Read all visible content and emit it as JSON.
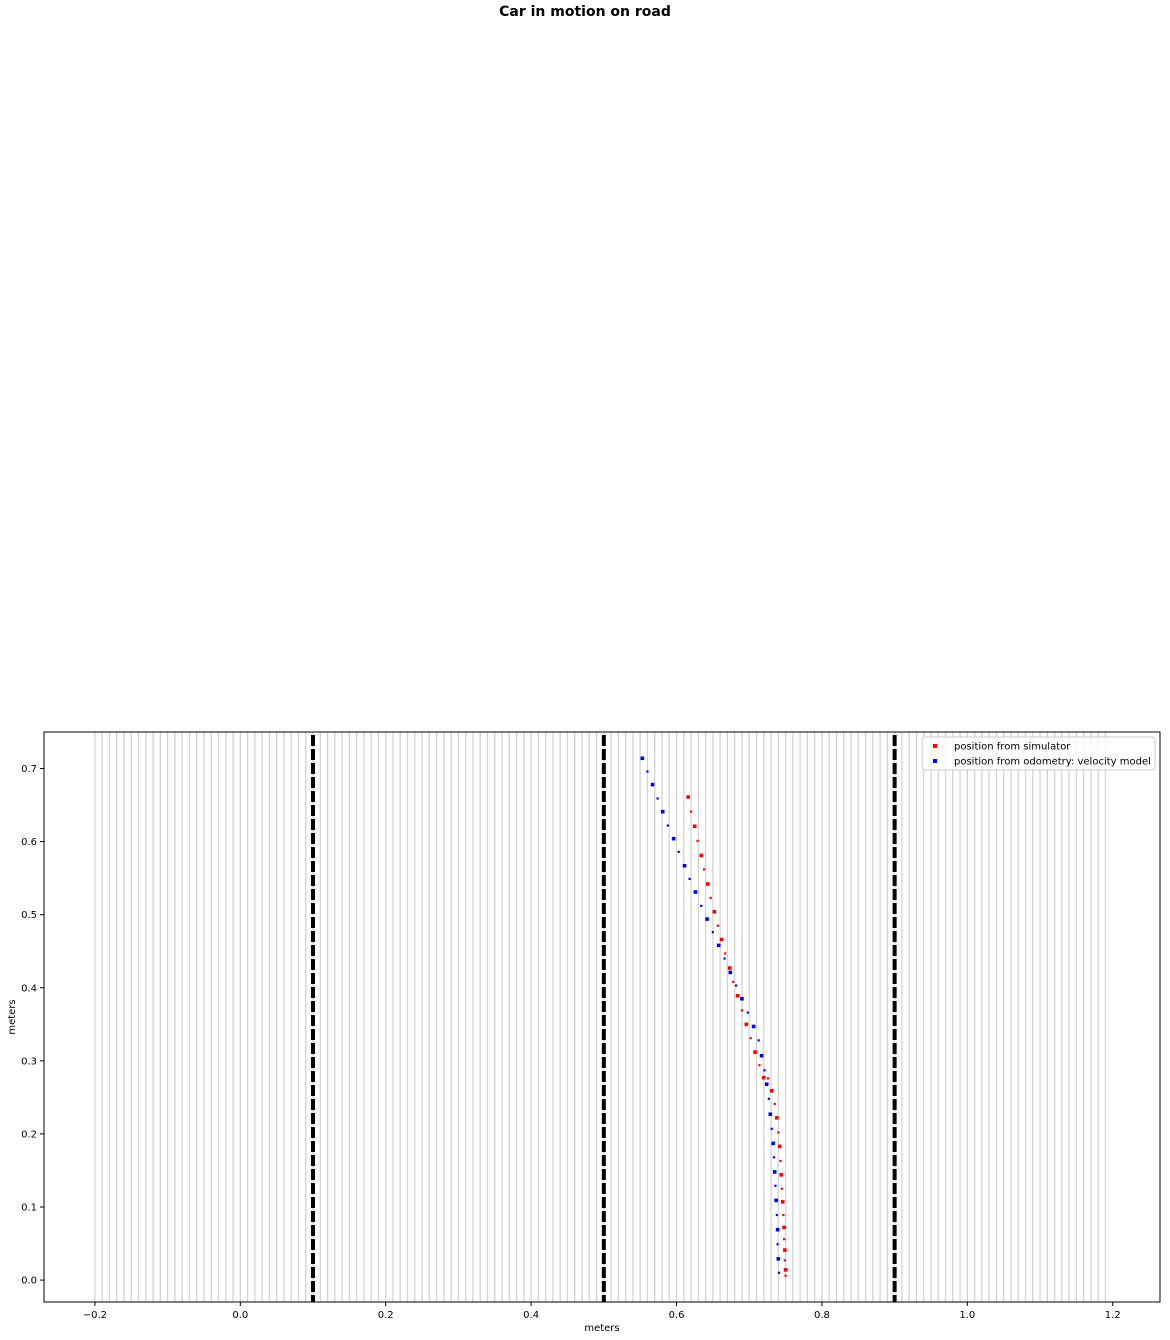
{
  "chart_data": {
    "type": "scatter",
    "title": "Car in motion on road",
    "xlabel": "meters",
    "ylabel": "meters",
    "xlim": [
      -0.27,
      1.265
    ],
    "ylim": [
      -0.03,
      0.75
    ],
    "xticks": [
      -0.2,
      0.0,
      0.2,
      0.4,
      0.6,
      0.8,
      1.0,
      1.2
    ],
    "xtick_labels": [
      "−0.2",
      "0.0",
      "0.2",
      "0.4",
      "0.6",
      "0.8",
      "1.0",
      "1.2"
    ],
    "yticks": [
      0.0,
      0.1,
      0.2,
      0.3,
      0.4,
      0.5,
      0.6,
      0.7
    ],
    "ytick_labels": [
      "0.0",
      "0.1",
      "0.2",
      "0.3",
      "0.4",
      "0.5",
      "0.6",
      "0.7"
    ],
    "grid": false,
    "legend_position": "top-right",
    "road": {
      "line_color": "#d3d3d3",
      "line_start": -0.2,
      "line_end": 1.19,
      "line_step": 0.01,
      "lane_markings": [
        0.1,
        0.5,
        0.9
      ],
      "lane_color": "#000000"
    },
    "series": [
      {
        "name": "position from simulator",
        "color": "#ff0000",
        "points": [
          [
            0.616,
            0.661
          ],
          [
            0.62,
            0.641
          ],
          [
            0.625,
            0.621
          ],
          [
            0.629,
            0.601
          ],
          [
            0.634,
            0.581
          ],
          [
            0.638,
            0.562
          ],
          [
            0.643,
            0.542
          ],
          [
            0.647,
            0.523
          ],
          [
            0.652,
            0.504
          ],
          [
            0.657,
            0.485
          ],
          [
            0.662,
            0.466
          ],
          [
            0.667,
            0.447
          ],
          [
            0.673,
            0.427
          ],
          [
            0.678,
            0.408
          ],
          [
            0.684,
            0.389
          ],
          [
            0.69,
            0.369
          ],
          [
            0.696,
            0.35
          ],
          [
            0.702,
            0.331
          ],
          [
            0.708,
            0.312
          ],
          [
            0.714,
            0.294
          ],
          [
            0.72,
            0.277
          ],
          [
            0.726,
            0.276
          ],
          [
            0.731,
            0.259
          ],
          [
            0.735,
            0.241
          ],
          [
            0.738,
            0.222
          ],
          [
            0.74,
            0.202
          ],
          [
            0.742,
            0.183
          ],
          [
            0.743,
            0.163
          ],
          [
            0.744,
            0.144
          ],
          [
            0.745,
            0.125
          ],
          [
            0.746,
            0.107
          ],
          [
            0.747,
            0.089
          ],
          [
            0.748,
            0.072
          ],
          [
            0.748,
            0.056
          ],
          [
            0.749,
            0.041
          ],
          [
            0.749,
            0.027
          ],
          [
            0.75,
            0.014
          ],
          [
            0.75,
            0.006
          ]
        ]
      },
      {
        "name": "position from odometry: velocity model",
        "color": "#0000ff",
        "points": [
          [
            0.553,
            0.714
          ],
          [
            0.56,
            0.696
          ],
          [
            0.567,
            0.678
          ],
          [
            0.574,
            0.659
          ],
          [
            0.581,
            0.641
          ],
          [
            0.588,
            0.622
          ],
          [
            0.596,
            0.604
          ],
          [
            0.603,
            0.586
          ],
          [
            0.611,
            0.567
          ],
          [
            0.618,
            0.549
          ],
          [
            0.626,
            0.531
          ],
          [
            0.634,
            0.512
          ],
          [
            0.642,
            0.494
          ],
          [
            0.65,
            0.476
          ],
          [
            0.658,
            0.458
          ],
          [
            0.666,
            0.44
          ],
          [
            0.674,
            0.421
          ],
          [
            0.682,
            0.403
          ],
          [
            0.69,
            0.385
          ],
          [
            0.698,
            0.366
          ],
          [
            0.706,
            0.347
          ],
          [
            0.713,
            0.328
          ],
          [
            0.717,
            0.307
          ],
          [
            0.721,
            0.287
          ],
          [
            0.724,
            0.268
          ],
          [
            0.727,
            0.248
          ],
          [
            0.729,
            0.227
          ],
          [
            0.731,
            0.207
          ],
          [
            0.733,
            0.187
          ],
          [
            0.734,
            0.168
          ],
          [
            0.735,
            0.148
          ],
          [
            0.736,
            0.129
          ],
          [
            0.737,
            0.109
          ],
          [
            0.738,
            0.089
          ],
          [
            0.739,
            0.069
          ],
          [
            0.739,
            0.049
          ],
          [
            0.74,
            0.029
          ],
          [
            0.741,
            0.01
          ]
        ]
      }
    ]
  }
}
